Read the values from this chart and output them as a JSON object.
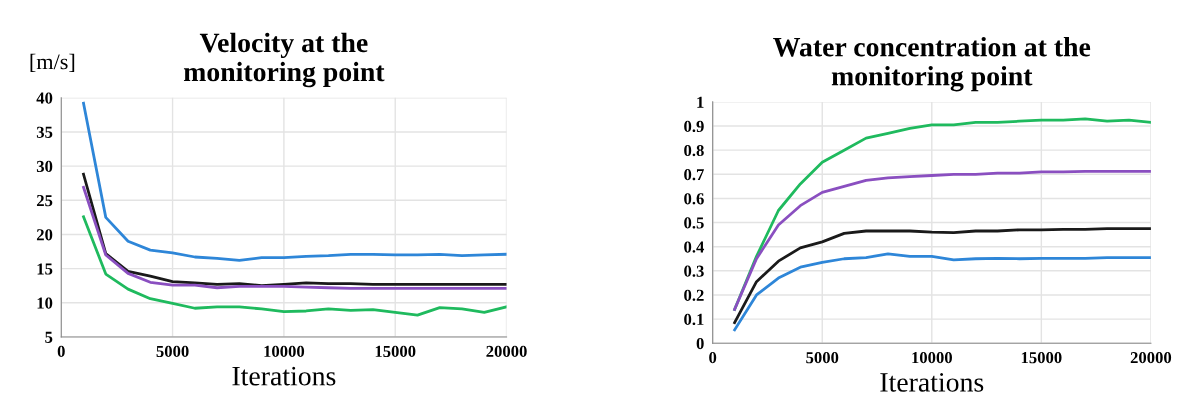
{
  "chart_data": [
    {
      "type": "line",
      "title": "Velocity at the\nmonitoring point",
      "xlabel": "Iterations",
      "ylabel": "[m/s]",
      "x": [
        1000,
        2000,
        3000,
        4000,
        5000,
        6000,
        7000,
        8000,
        9000,
        10000,
        11000,
        12000,
        13000,
        14000,
        15000,
        16000,
        17000,
        18000,
        19000,
        20000
      ],
      "xlim": [
        0,
        20000
      ],
      "xticks": [
        0,
        5000,
        10000,
        15000,
        20000
      ],
      "ylim": [
        5,
        40
      ],
      "yticks": [
        5,
        10,
        15,
        20,
        25,
        30,
        35,
        40
      ],
      "grid": true,
      "legend": false,
      "marker": "none",
      "line_style": "solid",
      "series": [
        {
          "color": "#2e86d8",
          "values": [
            39.2,
            22.5,
            19.0,
            17.7,
            17.3,
            16.7,
            16.5,
            16.2,
            16.6,
            16.6,
            16.8,
            16.9,
            17.1,
            17.1,
            17.0,
            17.0,
            17.1,
            16.9,
            17.0,
            17.1
          ]
        },
        {
          "color": "#1a1a1a",
          "values": [
            28.8,
            17.2,
            14.6,
            13.9,
            13.1,
            12.9,
            12.7,
            12.8,
            12.5,
            12.7,
            12.9,
            12.8,
            12.8,
            12.7,
            12.7,
            12.7,
            12.7,
            12.7,
            12.7,
            12.7
          ]
        },
        {
          "color": "#8a4fc0",
          "values": [
            26.9,
            17.0,
            14.3,
            13.0,
            12.6,
            12.6,
            12.2,
            12.4,
            12.4,
            12.4,
            12.3,
            12.2,
            12.1,
            12.1,
            12.1,
            12.1,
            12.1,
            12.1,
            12.1,
            12.1
          ]
        },
        {
          "color": "#1fba5e",
          "values": [
            22.6,
            14.2,
            12.0,
            10.6,
            9.9,
            9.2,
            9.4,
            9.4,
            9.1,
            8.7,
            8.8,
            9.1,
            8.9,
            9.0,
            8.6,
            8.2,
            9.3,
            9.1,
            8.6,
            9.4
          ]
        }
      ]
    },
    {
      "type": "line",
      "title": "Water concentration at the\nmonitoring point",
      "xlabel": "Iterations",
      "x": [
        1000,
        2000,
        3000,
        4000,
        5000,
        6000,
        7000,
        8000,
        9000,
        10000,
        11000,
        12000,
        13000,
        14000,
        15000,
        16000,
        17000,
        18000,
        19000,
        20000
      ],
      "xlim": [
        0,
        20000
      ],
      "xticks": [
        0,
        5000,
        10000,
        15000,
        20000
      ],
      "ylim": [
        0,
        1
      ],
      "yticks": [
        0,
        0.1,
        0.2,
        0.3,
        0.4,
        0.5,
        0.6,
        0.7,
        0.8,
        0.9,
        1
      ],
      "grid": true,
      "legend": false,
      "marker": "none",
      "line_style": "solid",
      "series": [
        {
          "color": "#1fba5e",
          "values": [
            0.14,
            0.36,
            0.55,
            0.66,
            0.75,
            0.8,
            0.85,
            0.87,
            0.89,
            0.905,
            0.905,
            0.915,
            0.915,
            0.92,
            0.925,
            0.925,
            0.93,
            0.92,
            0.925,
            0.915
          ]
        },
        {
          "color": "#8a4fc0",
          "values": [
            0.14,
            0.35,
            0.49,
            0.57,
            0.625,
            0.65,
            0.675,
            0.685,
            0.69,
            0.695,
            0.7,
            0.7,
            0.705,
            0.705,
            0.71,
            0.71,
            0.712,
            0.712,
            0.712,
            0.712
          ]
        },
        {
          "color": "#1a1a1a",
          "values": [
            0.085,
            0.255,
            0.34,
            0.395,
            0.42,
            0.455,
            0.465,
            0.465,
            0.465,
            0.46,
            0.458,
            0.465,
            0.465,
            0.47,
            0.47,
            0.472,
            0.472,
            0.475,
            0.475,
            0.475
          ]
        },
        {
          "color": "#2e86d8",
          "values": [
            0.055,
            0.2,
            0.27,
            0.315,
            0.335,
            0.35,
            0.355,
            0.37,
            0.36,
            0.36,
            0.345,
            0.35,
            0.352,
            0.35,
            0.352,
            0.352,
            0.352,
            0.355,
            0.355,
            0.355
          ]
        }
      ]
    }
  ]
}
